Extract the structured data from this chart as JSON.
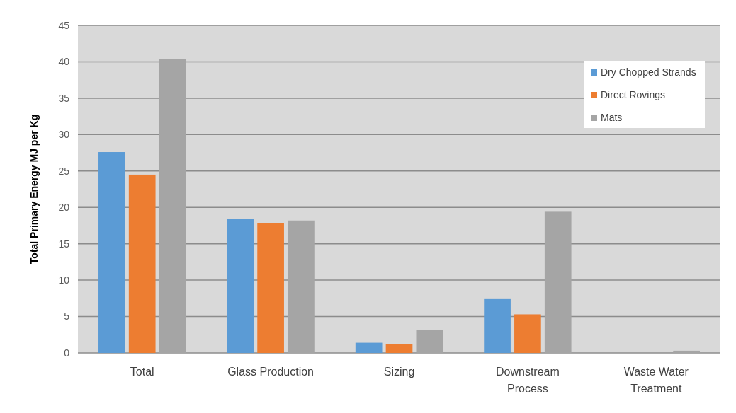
{
  "chart_data": {
    "type": "bar",
    "ylabel": "Total Primary Energy MJ per Kg",
    "categories": [
      "Total",
      "Glass Production",
      "Sizing",
      "Downstream Process",
      "Waste Water Treatment"
    ],
    "series": [
      {
        "name": "Dry Chopped Strands",
        "color": "#5b9bd5",
        "values": [
          27.6,
          18.4,
          1.4,
          7.4,
          null
        ]
      },
      {
        "name": "Direct Rovings",
        "color": "#ed7d31",
        "values": [
          24.5,
          17.8,
          1.2,
          5.3,
          null
        ]
      },
      {
        "name": "Mats",
        "color": "#a5a5a5",
        "values": [
          40.4,
          18.2,
          3.2,
          19.4,
          0.3
        ]
      }
    ],
    "ylim": [
      0,
      45
    ],
    "yticks": [
      0,
      5,
      10,
      15,
      20,
      25,
      30,
      35,
      40,
      45
    ],
    "grid": "y",
    "legend": "top right"
  }
}
